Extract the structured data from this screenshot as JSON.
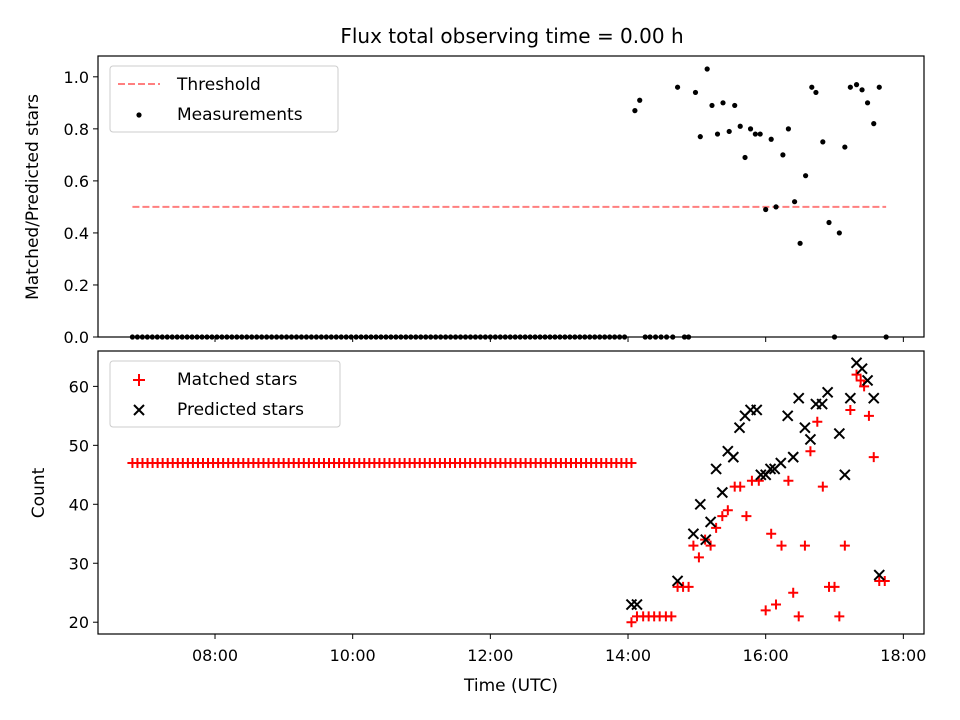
{
  "figure": {
    "title": "Flux total observing time = 0.00 h"
  },
  "chart_data": [
    {
      "type": "scatter",
      "ylabel": "Matched/Predicted stars",
      "xlabel": "",
      "xlim": [
        6.3,
        18.3
      ],
      "ylim": [
        0,
        1.08
      ],
      "yticks": [
        "0.0",
        "0.2",
        "0.4",
        "0.6",
        "0.8",
        "1.0"
      ],
      "ytick_values": [
        0,
        0.2,
        0.4,
        0.6,
        0.8,
        1.0
      ],
      "xticks": [
        "08:00",
        "10:00",
        "12:00",
        "14:00",
        "16:00",
        "18:00"
      ],
      "xtick_values": [
        8,
        10,
        12,
        14,
        16,
        18
      ],
      "grid": false,
      "legend_position": "top-left",
      "threshold": {
        "name": "Threshold",
        "y": 0.5,
        "x_range": [
          6.8,
          17.75
        ],
        "color": "#ff7f7f"
      },
      "series": [
        {
          "name": "Measurements",
          "color": "#000000",
          "zero_run": {
            "x_start": 6.8,
            "x_end": 13.95,
            "count": 100,
            "y": 0
          },
          "points": [
            [
              14.1,
              0.87
            ],
            [
              14.17,
              0.91
            ],
            [
              14.25,
              0
            ],
            [
              14.32,
              0
            ],
            [
              14.4,
              0
            ],
            [
              14.48,
              0
            ],
            [
              14.56,
              0
            ],
            [
              14.65,
              0
            ],
            [
              14.72,
              0.96
            ],
            [
              14.82,
              0
            ],
            [
              14.88,
              0
            ],
            [
              14.98,
              0.94
            ],
            [
              15.05,
              0.77
            ],
            [
              15.15,
              1.03
            ],
            [
              15.22,
              0.89
            ],
            [
              15.3,
              0.78
            ],
            [
              15.38,
              0.9
            ],
            [
              15.47,
              0.79
            ],
            [
              15.55,
              0.89
            ],
            [
              15.63,
              0.81
            ],
            [
              15.7,
              0.69
            ],
            [
              15.78,
              0.8
            ],
            [
              15.85,
              0.78
            ],
            [
              15.92,
              0.78
            ],
            [
              16.0,
              0.49
            ],
            [
              16.08,
              0.76
            ],
            [
              16.15,
              0.5
            ],
            [
              16.25,
              0.7
            ],
            [
              16.33,
              0.8
            ],
            [
              16.42,
              0.52
            ],
            [
              16.5,
              0.36
            ],
            [
              16.58,
              0.62
            ],
            [
              16.67,
              0.96
            ],
            [
              16.73,
              0.94
            ],
            [
              16.83,
              0.75
            ],
            [
              16.92,
              0.44
            ],
            [
              17.0,
              0
            ],
            [
              17.07,
              0.4
            ],
            [
              17.15,
              0.73
            ],
            [
              17.23,
              0.96
            ],
            [
              17.32,
              0.97
            ],
            [
              17.4,
              0.95
            ],
            [
              17.48,
              0.9
            ],
            [
              17.57,
              0.82
            ],
            [
              17.65,
              0.96
            ],
            [
              17.75,
              0
            ]
          ]
        }
      ]
    },
    {
      "type": "scatter",
      "ylabel": "Count",
      "xlabel": "Time (UTC)",
      "xlim": [
        6.3,
        18.3
      ],
      "ylim": [
        18,
        66
      ],
      "yticks": [
        "20",
        "30",
        "40",
        "50",
        "60"
      ],
      "ytick_values": [
        20,
        30,
        40,
        50,
        60
      ],
      "xticks": [
        "08:00",
        "10:00",
        "12:00",
        "14:00",
        "16:00",
        "18:00"
      ],
      "xtick_values": [
        8,
        10,
        12,
        14,
        16,
        18
      ],
      "grid": false,
      "legend_position": "top-left",
      "series": [
        {
          "name": "Matched stars",
          "color": "#ff0000",
          "marker": "plus",
          "flat_run": {
            "x_start": 6.8,
            "x_end": 14.05,
            "count": 100,
            "y": 47
          },
          "points": [
            [
              14.05,
              20
            ],
            [
              14.13,
              21
            ],
            [
              14.22,
              21
            ],
            [
              14.3,
              21
            ],
            [
              14.38,
              21
            ],
            [
              14.46,
              21
            ],
            [
              14.55,
              21
            ],
            [
              14.63,
              21
            ],
            [
              14.72,
              26
            ],
            [
              14.8,
              26
            ],
            [
              14.88,
              26
            ],
            [
              14.95,
              33
            ],
            [
              15.03,
              31
            ],
            [
              15.12,
              34
            ],
            [
              15.2,
              33
            ],
            [
              15.28,
              36
            ],
            [
              15.37,
              38
            ],
            [
              15.45,
              39
            ],
            [
              15.55,
              43
            ],
            [
              15.63,
              43
            ],
            [
              15.72,
              38
            ],
            [
              15.8,
              44
            ],
            [
              15.9,
              44
            ],
            [
              16.0,
              22
            ],
            [
              16.08,
              35
            ],
            [
              16.15,
              23
            ],
            [
              16.23,
              33
            ],
            [
              16.33,
              44
            ],
            [
              16.4,
              25
            ],
            [
              16.48,
              21
            ],
            [
              16.57,
              33
            ],
            [
              16.65,
              49
            ],
            [
              16.75,
              54
            ],
            [
              16.83,
              43
            ],
            [
              16.92,
              26
            ],
            [
              17.0,
              26
            ],
            [
              17.07,
              21
            ],
            [
              17.15,
              33
            ],
            [
              17.23,
              56
            ],
            [
              17.32,
              62
            ],
            [
              17.38,
              61
            ],
            [
              17.43,
              60
            ],
            [
              17.5,
              55
            ],
            [
              17.57,
              48
            ],
            [
              17.65,
              27
            ],
            [
              17.73,
              27
            ]
          ]
        },
        {
          "name": "Predicted stars",
          "color": "#000000",
          "marker": "x",
          "points": [
            [
              14.05,
              23
            ],
            [
              14.13,
              23
            ],
            [
              14.72,
              27
            ],
            [
              14.95,
              35
            ],
            [
              15.05,
              40
            ],
            [
              15.13,
              34
            ],
            [
              15.2,
              37
            ],
            [
              15.28,
              46
            ],
            [
              15.37,
              42
            ],
            [
              15.45,
              49
            ],
            [
              15.53,
              48
            ],
            [
              15.62,
              53
            ],
            [
              15.7,
              55
            ],
            [
              15.78,
              56
            ],
            [
              15.87,
              56
            ],
            [
              15.93,
              45
            ],
            [
              16.0,
              45
            ],
            [
              16.07,
              46
            ],
            [
              16.13,
              46
            ],
            [
              16.22,
              47
            ],
            [
              16.32,
              55
            ],
            [
              16.4,
              48
            ],
            [
              16.48,
              58
            ],
            [
              16.57,
              53
            ],
            [
              16.65,
              51
            ],
            [
              16.73,
              57
            ],
            [
              16.82,
              57
            ],
            [
              16.9,
              59
            ],
            [
              17.07,
              52
            ],
            [
              17.15,
              45
            ],
            [
              17.23,
              58
            ],
            [
              17.32,
              64
            ],
            [
              17.4,
              63
            ],
            [
              17.48,
              61
            ],
            [
              17.57,
              58
            ],
            [
              17.65,
              28
            ]
          ]
        }
      ]
    }
  ]
}
